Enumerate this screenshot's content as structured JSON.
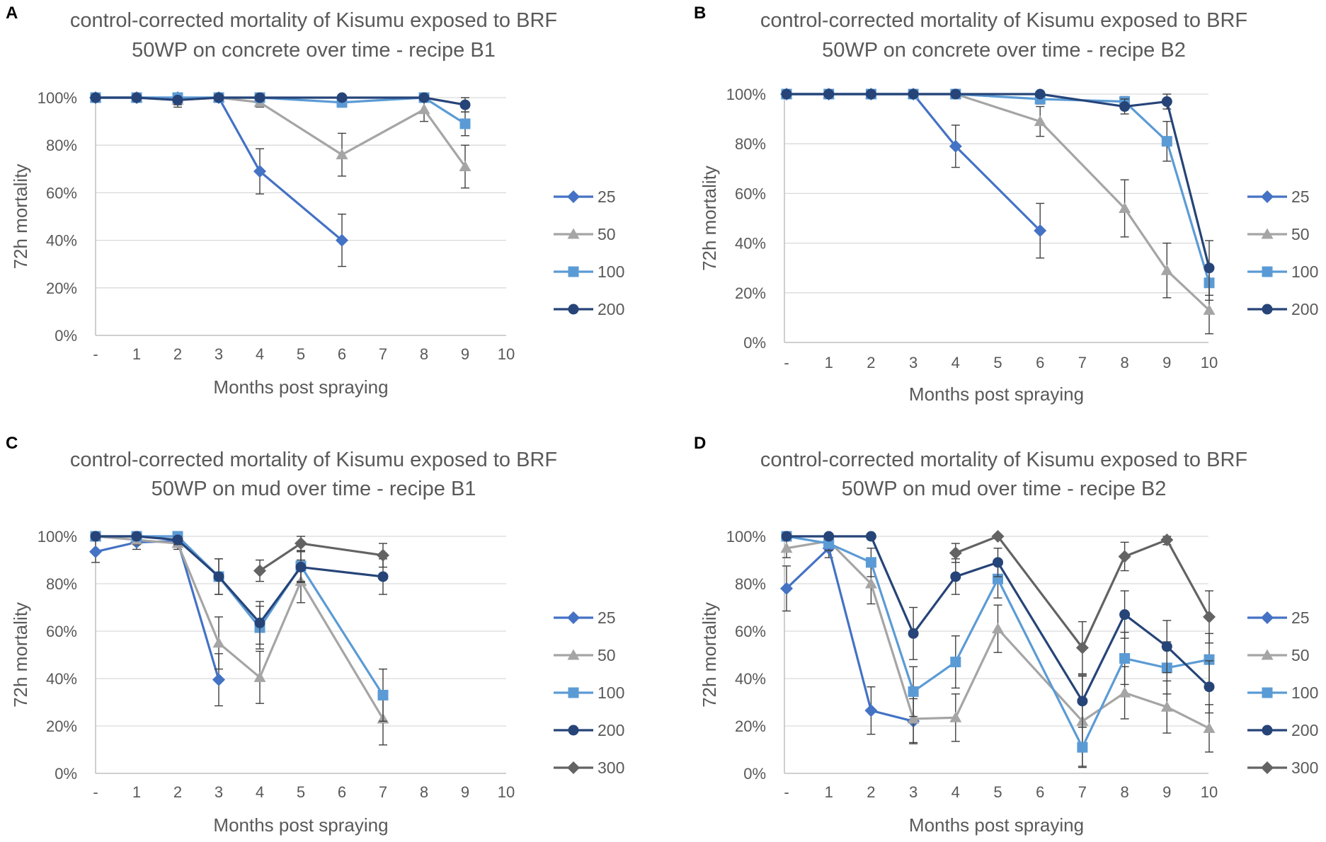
{
  "colors": {
    "25": "#4472c4",
    "50": "#a5a5a5",
    "100": "#5b9bd5",
    "200": "#264478",
    "300": "#636363",
    "grid": "#d9d9d9",
    "axis": "#bfbfbf",
    "error": "#404040"
  },
  "chart_data": [
    {
      "panel": "A",
      "type": "line",
      "title": [
        "control-corrected mortality of Kisumu exposed to BRF",
        "50WP on concrete over time - recipe B1"
      ],
      "xlabel": "Months post spraying",
      "ylabel": "72h mortality",
      "categories": [
        "-",
        "1",
        "2",
        "3",
        "4",
        "5",
        "6",
        "7",
        "8",
        "9",
        "10"
      ],
      "yticks": [
        "0%",
        "20%",
        "40%",
        "60%",
        "80%",
        "100%"
      ],
      "ylim": [
        0,
        100
      ],
      "legend_position": "right",
      "series": [
        {
          "name": "25",
          "marker": "diamond",
          "values": [
            100,
            100,
            100,
            100,
            69,
            null,
            40,
            null,
            null,
            null,
            null
          ],
          "errors": [
            0,
            0,
            0,
            0,
            9.5,
            null,
            11,
            null,
            null,
            null,
            null
          ]
        },
        {
          "name": "50",
          "marker": "triangle",
          "values": [
            100,
            100,
            99,
            100,
            98,
            null,
            76,
            null,
            95,
            71,
            null
          ],
          "errors": [
            0,
            0,
            3,
            0,
            2,
            null,
            9,
            null,
            5,
            9,
            null
          ]
        },
        {
          "name": "100",
          "marker": "square",
          "values": [
            100,
            100,
            100,
            100,
            100,
            null,
            98,
            null,
            100,
            89,
            null
          ],
          "errors": [
            0,
            0,
            0,
            0,
            0,
            null,
            2,
            null,
            0,
            5,
            null
          ]
        },
        {
          "name": "200",
          "marker": "circle",
          "values": [
            100,
            100,
            99,
            100,
            100,
            null,
            100,
            null,
            100,
            97,
            null
          ],
          "errors": [
            0,
            0,
            2,
            0,
            0,
            null,
            0,
            null,
            0,
            3,
            null
          ]
        }
      ]
    },
    {
      "panel": "B",
      "type": "line",
      "title": [
        "control-corrected mortality of Kisumu exposed to BRF",
        "50WP on concrete over time - recipe B2"
      ],
      "xlabel": "Months post spraying",
      "ylabel": "72h mortality",
      "categories": [
        "-",
        "1",
        "2",
        "3",
        "4",
        "5",
        "6",
        "7",
        "8",
        "9",
        "10"
      ],
      "yticks": [
        "0%",
        "20%",
        "40%",
        "60%",
        "80%",
        "100%"
      ],
      "ylim": [
        0,
        100
      ],
      "legend_position": "right",
      "series": [
        {
          "name": "25",
          "marker": "diamond",
          "values": [
            100,
            100,
            100,
            100,
            79,
            null,
            45,
            null,
            null,
            null,
            null
          ],
          "errors": [
            0,
            0,
            0,
            0,
            8.5,
            null,
            11,
            null,
            null,
            null,
            null
          ]
        },
        {
          "name": "50",
          "marker": "triangle",
          "values": [
            100,
            100,
            100,
            100,
            100,
            null,
            89,
            null,
            54,
            29,
            13
          ],
          "errors": [
            0,
            0,
            0,
            0,
            0,
            null,
            6,
            null,
            11.5,
            11,
            9.5
          ]
        },
        {
          "name": "100",
          "marker": "square",
          "values": [
            100,
            100,
            100,
            100,
            100,
            null,
            98,
            null,
            97,
            81,
            24
          ],
          "errors": [
            0,
            0,
            0,
            0,
            0,
            null,
            2,
            null,
            2,
            8,
            7
          ]
        },
        {
          "name": "200",
          "marker": "circle",
          "values": [
            100,
            100,
            100,
            100,
            100,
            null,
            100,
            null,
            95,
            97,
            30
          ],
          "errors": [
            0,
            0,
            0,
            0,
            0,
            null,
            0,
            null,
            3,
            3,
            11
          ]
        }
      ]
    },
    {
      "panel": "C",
      "type": "line",
      "title": [
        "control-corrected mortality of Kisumu exposed to BRF",
        "50WP on mud over time - recipe B1"
      ],
      "xlabel": "Months post spraying",
      "ylabel": "72h mortality",
      "categories": [
        "-",
        "1",
        "2",
        "3",
        "4",
        "5",
        "6",
        "7",
        "8",
        "9",
        "10"
      ],
      "yticks": [
        "0%",
        "20%",
        "40%",
        "60%",
        "80%",
        "100%"
      ],
      "ylim": [
        0,
        100
      ],
      "legend_position": "right",
      "series": [
        {
          "name": "25",
          "marker": "diamond",
          "values": [
            93.5,
            97.5,
            98,
            39.5,
            null,
            null,
            null,
            null,
            null,
            null,
            null
          ],
          "errors": [
            4.5,
            3,
            2,
            11,
            null,
            null,
            null,
            null,
            null,
            null,
            null
          ]
        },
        {
          "name": "50",
          "marker": "triangle",
          "values": [
            100,
            98.5,
            97,
            55,
            40.5,
            81,
            null,
            23,
            null,
            null,
            null
          ],
          "errors": [
            0,
            2,
            2.5,
            11,
            11,
            9,
            null,
            11,
            null,
            null,
            null
          ]
        },
        {
          "name": "100",
          "marker": "square",
          "values": [
            100,
            100,
            100,
            83,
            61.5,
            87.5,
            null,
            33,
            null,
            null,
            null
          ],
          "errors": [
            0,
            0,
            0,
            7.5,
            9,
            6.5,
            null,
            11,
            null,
            null,
            null
          ]
        },
        {
          "name": "200",
          "marker": "circle",
          "values": [
            100,
            100,
            98.5,
            83,
            63.5,
            87,
            null,
            83,
            null,
            null,
            null
          ],
          "errors": [
            0,
            0,
            2,
            7.5,
            9,
            6.5,
            null,
            7.5,
            null,
            null,
            null
          ]
        },
        {
          "name": "300",
          "marker": "diamond",
          "values": [
            null,
            null,
            null,
            null,
            85.5,
            97,
            null,
            92,
            null,
            null,
            null
          ],
          "errors": [
            null,
            null,
            null,
            null,
            4.5,
            3,
            null,
            5,
            null,
            null,
            null
          ]
        }
      ]
    },
    {
      "panel": "D",
      "type": "line",
      "title": [
        "control-corrected mortality of Kisumu exposed to BRF",
        "50WP on mud over time - recipe B2"
      ],
      "xlabel": "Months post spraying",
      "ylabel": "72h mortality",
      "categories": [
        "-",
        "1",
        "2",
        "3",
        "4",
        "5",
        "6",
        "7",
        "8",
        "9",
        "10"
      ],
      "yticks": [
        "0%",
        "20%",
        "40%",
        "60%",
        "80%",
        "100%"
      ],
      "ylim": [
        0,
        100
      ],
      "legend_position": "right",
      "series": [
        {
          "name": "25",
          "marker": "diamond",
          "values": [
            78,
            95,
            26.5,
            22,
            null,
            null,
            null,
            null,
            null,
            null,
            null
          ],
          "errors": [
            9.5,
            4,
            10,
            9.5,
            null,
            null,
            null,
            null,
            null,
            null,
            null
          ]
        },
        {
          "name": "50",
          "marker": "triangle",
          "values": [
            95,
            98,
            80,
            23,
            23.5,
            61,
            null,
            22,
            34,
            28,
            19
          ],
          "errors": [
            4,
            2,
            8.5,
            10,
            10,
            10,
            null,
            19,
            11,
            11,
            10
          ]
        },
        {
          "name": "100",
          "marker": "square",
          "values": [
            100,
            97,
            89,
            34.5,
            47,
            82,
            null,
            11,
            48.5,
            44.5,
            48
          ],
          "errors": [
            0,
            3,
            6,
            10.5,
            11,
            8,
            null,
            8.5,
            11,
            11,
            11
          ]
        },
        {
          "name": "200",
          "marker": "circle",
          "values": [
            100,
            100,
            100,
            59,
            83,
            89,
            null,
            30.5,
            67,
            53.5,
            36.5
          ],
          "errors": [
            0,
            0,
            0,
            11,
            7.5,
            6,
            null,
            11,
            10,
            11,
            11
          ]
        },
        {
          "name": "300",
          "marker": "diamond",
          "values": [
            null,
            null,
            null,
            null,
            93,
            100,
            null,
            53,
            91.5,
            98.5,
            66
          ],
          "errors": [
            null,
            null,
            null,
            null,
            4,
            0,
            null,
            11,
            6,
            2,
            11
          ]
        }
      ]
    }
  ]
}
